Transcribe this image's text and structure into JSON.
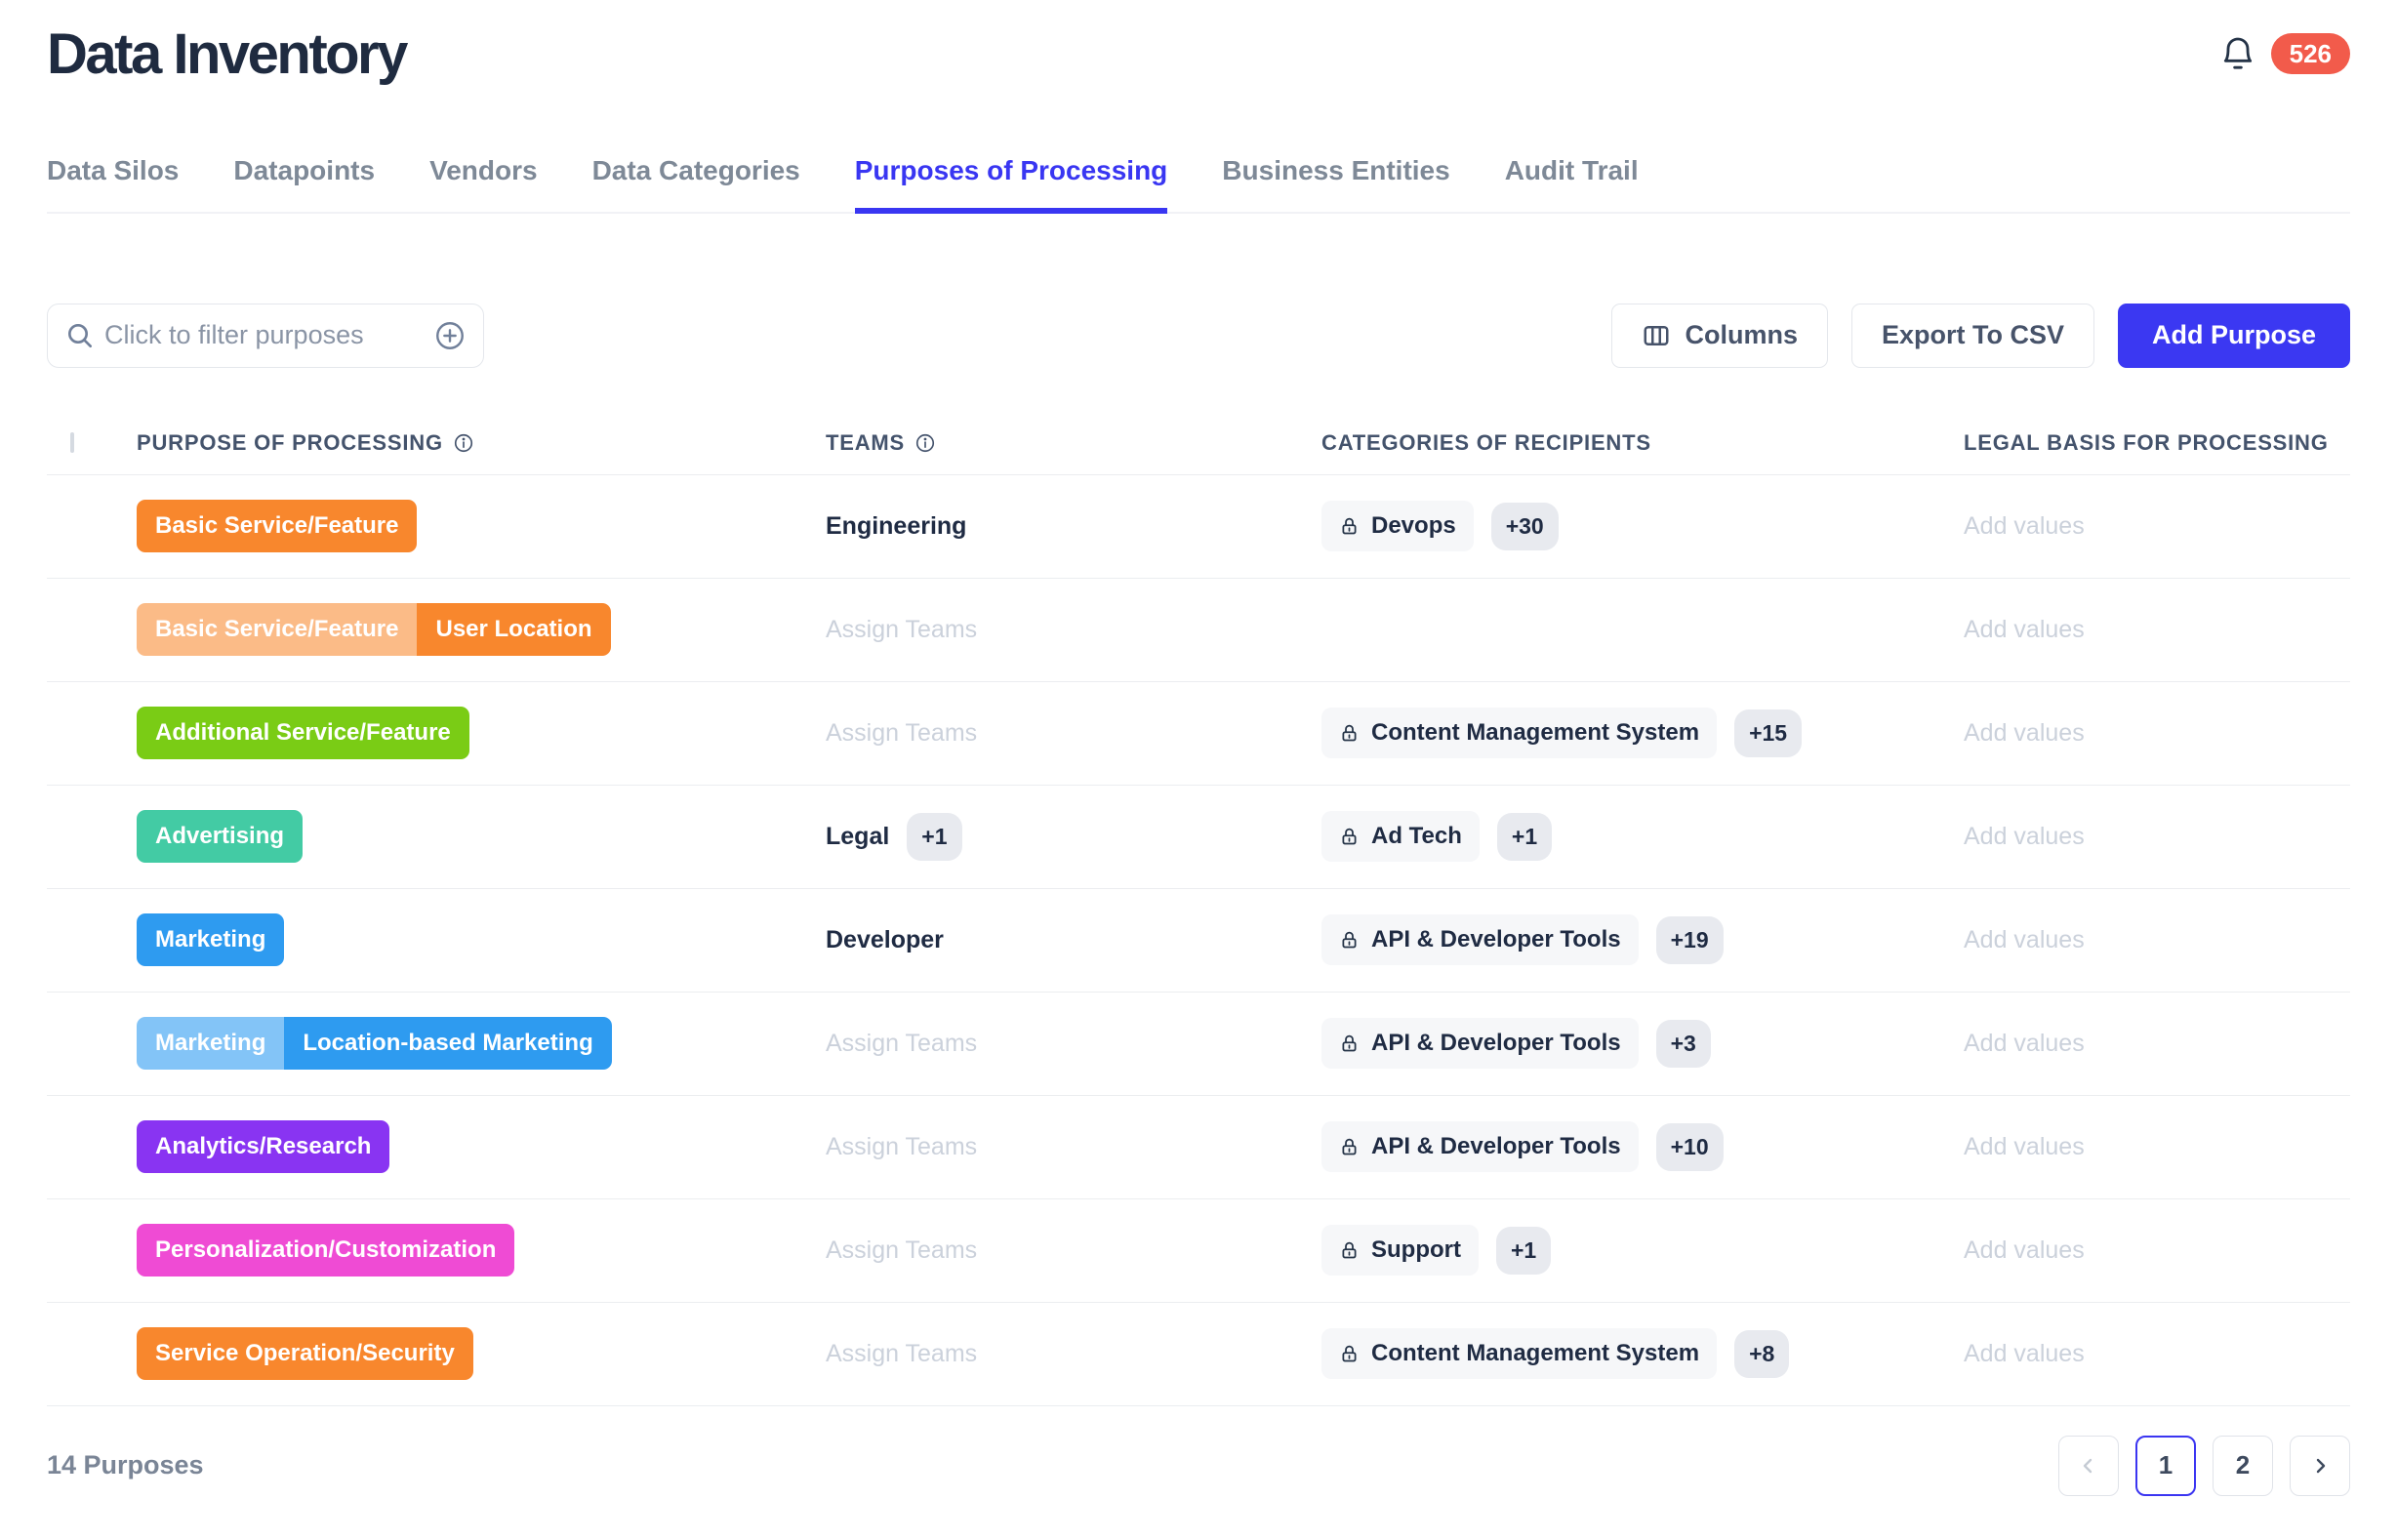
{
  "header": {
    "title": "Data Inventory",
    "notification_count": "526"
  },
  "tabs": {
    "items": [
      {
        "label": "Data Silos",
        "active": false
      },
      {
        "label": "Datapoints",
        "active": false
      },
      {
        "label": "Vendors",
        "active": false
      },
      {
        "label": "Data Categories",
        "active": false
      },
      {
        "label": "Purposes of Processing",
        "active": true
      },
      {
        "label": "Business Entities",
        "active": false
      },
      {
        "label": "Audit Trail",
        "active": false
      }
    ]
  },
  "toolbar": {
    "filter_placeholder": "Click to filter purposes",
    "columns_label": "Columns",
    "export_label": "Export To CSV",
    "add_purpose_label": "Add Purpose"
  },
  "table": {
    "headers": [
      {
        "label": "Purpose of Processing",
        "info": true
      },
      {
        "label": "Teams",
        "info": true
      },
      {
        "label": "Categories of Recipients",
        "info": false
      },
      {
        "label": "Legal Basis for Processing",
        "info": false
      }
    ],
    "placeholders": {
      "teams": "Assign Teams",
      "legal": "Add values"
    },
    "rows": [
      {
        "tags": [
          {
            "label": "Basic Service/Feature",
            "color": "#F8872D"
          }
        ],
        "teams": {
          "value": "Engineering",
          "extra": ""
        },
        "recipients": {
          "label": "Devops",
          "extra": "+30"
        }
      },
      {
        "tags": [
          {
            "label": "Basic Service/Feature",
            "color": "#FBBB87"
          },
          {
            "label": "User Location",
            "color": "#F8872D"
          }
        ],
        "teams": {
          "value": "",
          "extra": ""
        },
        "recipients": null
      },
      {
        "tags": [
          {
            "label": "Additional Service/Feature",
            "color": "#7ACC15"
          }
        ],
        "teams": {
          "value": "",
          "extra": ""
        },
        "recipients": {
          "label": "Content Management System",
          "extra": "+15"
        }
      },
      {
        "tags": [
          {
            "label": "Advertising",
            "color": "#43CBA4"
          }
        ],
        "teams": {
          "value": "Legal",
          "extra": "+1"
        },
        "recipients": {
          "label": "Ad Tech",
          "extra": "+1"
        }
      },
      {
        "tags": [
          {
            "label": "Marketing",
            "color": "#2E9BF0"
          }
        ],
        "teams": {
          "value": "Developer",
          "extra": ""
        },
        "recipients": {
          "label": "API & Developer Tools",
          "extra": "+19"
        }
      },
      {
        "tags": [
          {
            "label": "Marketing",
            "color": "#83C4F7"
          },
          {
            "label": "Location-based Marketing",
            "color": "#2E9BF0"
          }
        ],
        "teams": {
          "value": "",
          "extra": ""
        },
        "recipients": {
          "label": "API & Developer Tools",
          "extra": "+3"
        }
      },
      {
        "tags": [
          {
            "label": "Analytics/Research",
            "color": "#8934F2"
          }
        ],
        "teams": {
          "value": "",
          "extra": ""
        },
        "recipients": {
          "label": "API & Developer Tools",
          "extra": "+10"
        }
      },
      {
        "tags": [
          {
            "label": "Personalization/Customization",
            "color": "#EF4BD4"
          }
        ],
        "teams": {
          "value": "",
          "extra": ""
        },
        "recipients": {
          "label": "Support",
          "extra": "+1"
        }
      },
      {
        "tags": [
          {
            "label": "Service Operation/Security",
            "color": "#F8872D"
          }
        ],
        "teams": {
          "value": "",
          "extra": ""
        },
        "recipients": {
          "label": "Content Management System",
          "extra": "+8"
        }
      }
    ]
  },
  "footer": {
    "count_label": "14 Purposes",
    "pagination": {
      "pages": [
        "1",
        "2"
      ],
      "current_page": "1"
    }
  },
  "colors": {
    "accent_blue": "#3B38F2",
    "badge_red": "#F25B4B",
    "chip_bg": "#F6F7F9",
    "count_chip_bg": "#E8EAEF",
    "dark_text": "#1F2B43"
  }
}
